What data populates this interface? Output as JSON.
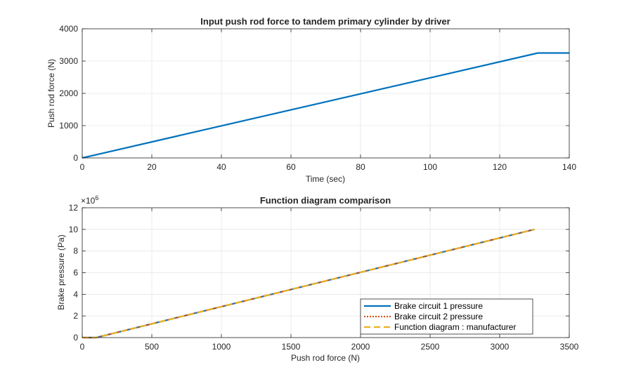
{
  "colors": {
    "blue": "#0072BD",
    "orange": "#D95319",
    "yellow": "#EDB120",
    "grid": "#e6e6e6",
    "axis": "#262626"
  },
  "chart_data": [
    {
      "type": "line",
      "title": "Input push rod force to tandem primary cylinder by driver",
      "xlabel": "Time (sec)",
      "ylabel": "Push rod force (N)",
      "xlim": [
        0,
        140
      ],
      "ylim": [
        0,
        4000
      ],
      "xticks": [
        0,
        20,
        40,
        60,
        80,
        100,
        120,
        140
      ],
      "yticks": [
        0,
        1000,
        2000,
        3000,
        4000
      ],
      "xtick_labels": [
        "0",
        "20",
        "40",
        "60",
        "80",
        "100",
        "120",
        "140"
      ],
      "ytick_labels": [
        "0",
        "1000",
        "2000",
        "3000",
        "4000"
      ],
      "grid": true,
      "series": [
        {
          "name": "",
          "color": "#0072BD",
          "dash": "solid",
          "x": [
            0,
            131,
            140
          ],
          "y": [
            0,
            3250,
            3250
          ]
        }
      ]
    },
    {
      "type": "line",
      "title": "Function diagram comparison",
      "xlabel": "Push rod force (N)",
      "ylabel": "Brake pressure (Pa)",
      "exponent_label": "×10",
      "exponent_power": "6",
      "xlim": [
        0,
        3500
      ],
      "ylim": [
        0,
        12000000
      ],
      "xticks": [
        0,
        500,
        1000,
        1500,
        2000,
        2500,
        3000,
        3500
      ],
      "yticks": [
        0,
        2000000,
        4000000,
        6000000,
        8000000,
        10000000,
        12000000
      ],
      "xtick_labels": [
        "0",
        "500",
        "1000",
        "1500",
        "2000",
        "2500",
        "3000",
        "3500"
      ],
      "ytick_labels": [
        "0",
        "2",
        "4",
        "6",
        "8",
        "10",
        "12"
      ],
      "grid": true,
      "legend_position": "bottom-right",
      "series": [
        {
          "name": "Brake circuit 1 pressure",
          "color": "#0072BD",
          "dash": "solid",
          "x": [
            0,
            100,
            3250
          ],
          "y": [
            0,
            0,
            10000000
          ]
        },
        {
          "name": "Brake circuit 2 pressure",
          "color": "#D95319",
          "dash": "dotted",
          "x": [
            0,
            100,
            3250
          ],
          "y": [
            0,
            0,
            10000000
          ]
        },
        {
          "name": "Function diagram : manufacturer",
          "color": "#EDB120",
          "dash": "dashed",
          "x": [
            0,
            100,
            3250
          ],
          "y": [
            0,
            0,
            10000000
          ]
        }
      ]
    }
  ]
}
